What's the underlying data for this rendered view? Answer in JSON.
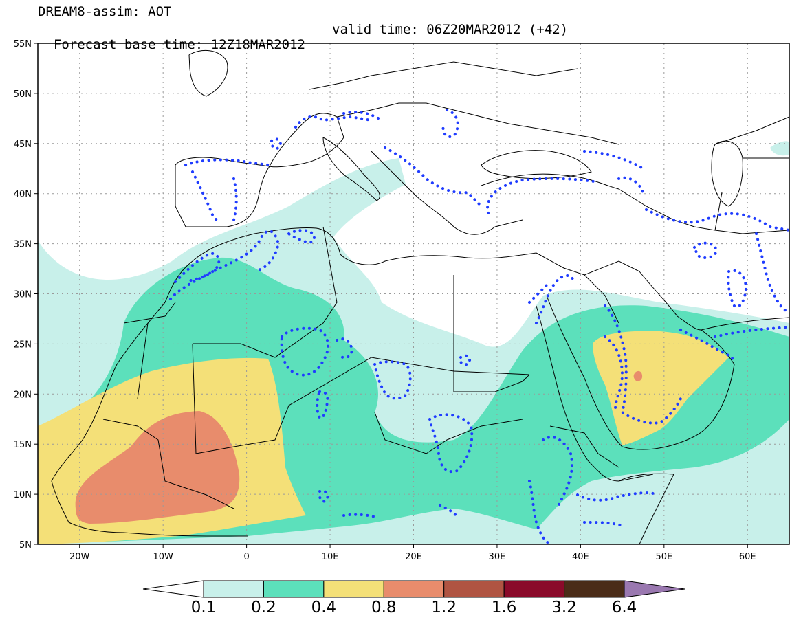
{
  "header": {
    "title": "DREAM8-assim: AOT",
    "base_time": "Forecast base time: 12Z18MAR2012",
    "valid_time": "valid time: 06Z20MAR2012 (+42)"
  },
  "map": {
    "lon_range": [
      -25,
      65
    ],
    "lat_range": [
      5,
      55
    ],
    "y_ticks": [
      {
        "lat": 55,
        "label": "55N"
      },
      {
        "lat": 50,
        "label": "50N"
      },
      {
        "lat": 45,
        "label": "45N"
      },
      {
        "lat": 40,
        "label": "40N"
      },
      {
        "lat": 35,
        "label": "35N"
      },
      {
        "lat": 30,
        "label": "30N"
      },
      {
        "lat": 25,
        "label": "25N"
      },
      {
        "lat": 20,
        "label": "20N"
      },
      {
        "lat": 15,
        "label": "15N"
      },
      {
        "lat": 10,
        "label": "10N"
      },
      {
        "lat": 5,
        "label": "5N"
      }
    ],
    "x_ticks": [
      {
        "lon": -20,
        "label": "20W"
      },
      {
        "lon": -10,
        "label": "10W"
      },
      {
        "lon": 0,
        "label": "0"
      },
      {
        "lon": 10,
        "label": "10E"
      },
      {
        "lon": 20,
        "label": "20E"
      },
      {
        "lon": 30,
        "label": "30E"
      },
      {
        "lon": 40,
        "label": "40E"
      },
      {
        "lon": 50,
        "label": "50E"
      },
      {
        "lon": 60,
        "label": "60E"
      }
    ],
    "grid": true,
    "field_colors": {
      "c01": "#c8f0ea",
      "c02": "#5ce0bb",
      "c04": "#f4e078",
      "c08": "#e88c6c",
      "c12": "#b05442"
    },
    "dotted_contour_color": "#1f3cff"
  },
  "colorbar": {
    "bins": [
      {
        "color": "#ffffff"
      },
      {
        "color": "#c8f0ea"
      },
      {
        "color": "#5ce0bb"
      },
      {
        "color": "#f4e078"
      },
      {
        "color": "#e88c6c"
      },
      {
        "color": "#b05442"
      },
      {
        "color": "#8a0a2a"
      },
      {
        "color": "#4a2c18"
      },
      {
        "color": "#9a78b0"
      }
    ],
    "labels": [
      "0.1",
      "0.2",
      "0.4",
      "0.8",
      "1.2",
      "1.6",
      "3.2",
      "6.4"
    ]
  }
}
